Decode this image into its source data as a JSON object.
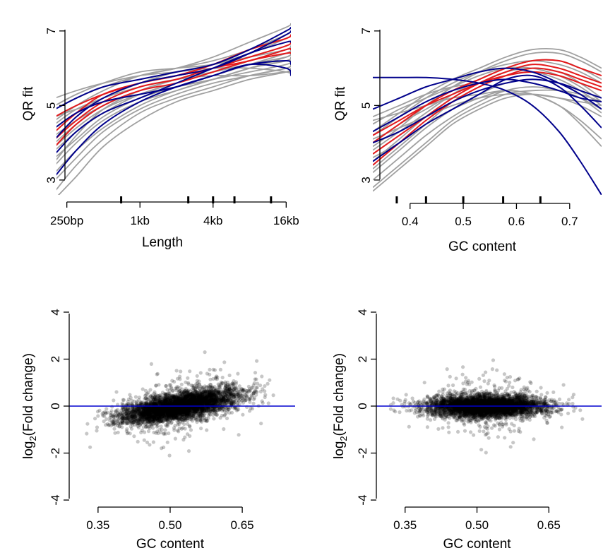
{
  "chart_data": [
    {
      "id": "length",
      "type": "line",
      "xlabel": "Length",
      "ylabel": "QR fit",
      "x_scale": "log2",
      "xlim": [
        200,
        17500
      ],
      "ylim": [
        2.6,
        7.3
      ],
      "xticks": [
        {
          "value": 250,
          "label": "250bp"
        },
        {
          "value": 1000,
          "label": "1kb"
        },
        {
          "value": 4000,
          "label": "4kb"
        },
        {
          "value": 16000,
          "label": "16kb"
        }
      ],
      "yticks": [
        {
          "value": 3,
          "label": "3"
        },
        {
          "value": 5,
          "label": "5"
        },
        {
          "value": 7,
          "label": "7"
        }
      ],
      "rug": [
        700,
        2500,
        4000,
        6000,
        12000
      ],
      "x": [
        200,
        300,
        500,
        1000,
        2000,
        4000,
        8000,
        16000,
        17500
      ],
      "series": [
        {
          "color": "#a0a0a0",
          "values": [
            4.6,
            5.0,
            5.4,
            5.8,
            6.0,
            6.2,
            6.5,
            6.9,
            7.0
          ]
        },
        {
          "color": "#a0a0a0",
          "values": [
            4.9,
            5.2,
            5.5,
            5.8,
            6.0,
            6.3,
            6.7,
            7.1,
            7.2
          ]
        },
        {
          "color": "#a0a0a0",
          "values": [
            5.2,
            5.4,
            5.6,
            5.8,
            5.9,
            6.0,
            6.0,
            5.9,
            5.8
          ]
        },
        {
          "color": "#a0a0a0",
          "values": [
            5.0,
            5.3,
            5.6,
            5.9,
            6.0,
            6.1,
            6.3,
            6.5,
            6.6
          ]
        },
        {
          "color": "#a0a0a0",
          "values": [
            4.4,
            4.8,
            5.2,
            5.6,
            5.9,
            6.1,
            6.4,
            6.8,
            6.9
          ]
        },
        {
          "color": "#a0a0a0",
          "values": [
            4.0,
            4.5,
            5.0,
            5.4,
            5.7,
            6.0,
            6.3,
            6.6,
            6.7
          ]
        },
        {
          "color": "#a0a0a0",
          "values": [
            3.8,
            4.3,
            4.8,
            5.3,
            5.6,
            5.9,
            6.2,
            6.5,
            6.6
          ]
        },
        {
          "color": "#a0a0a0",
          "values": [
            3.6,
            4.1,
            4.7,
            5.2,
            5.5,
            5.8,
            6.1,
            6.4,
            6.5
          ]
        },
        {
          "color": "#a0a0a0",
          "values": [
            3.4,
            4.0,
            4.6,
            5.1,
            5.4,
            5.7,
            6.0,
            6.3,
            6.4
          ]
        },
        {
          "color": "#a0a0a0",
          "values": [
            3.2,
            3.8,
            4.4,
            5.0,
            5.4,
            5.7,
            6.0,
            6.2,
            6.3
          ]
        },
        {
          "color": "#a0a0a0",
          "values": [
            3.0,
            3.6,
            4.3,
            4.9,
            5.3,
            5.6,
            5.8,
            6.0,
            6.1
          ]
        },
        {
          "color": "#a0a0a0",
          "values": [
            2.7,
            3.4,
            4.1,
            4.8,
            5.2,
            5.5,
            5.8,
            6.0,
            6.1
          ]
        },
        {
          "color": "#a0a0a0",
          "values": [
            2.5,
            3.1,
            3.9,
            4.6,
            5.1,
            5.4,
            5.7,
            5.9,
            6.0
          ]
        },
        {
          "color": "#a0a0a0",
          "values": [
            4.2,
            4.6,
            5.0,
            5.4,
            5.7,
            5.9,
            6.1,
            6.2,
            6.2
          ]
        },
        {
          "color": "#a0a0a0",
          "values": [
            4.5,
            4.9,
            5.2,
            5.5,
            5.7,
            5.8,
            5.8,
            5.9,
            5.9
          ]
        },
        {
          "color": "#a0a0a0",
          "values": [
            3.9,
            4.4,
            4.9,
            5.3,
            5.5,
            5.7,
            5.9,
            6.1,
            6.2
          ]
        },
        {
          "color": "#a0a0a0",
          "values": [
            4.7,
            4.9,
            5.1,
            5.3,
            5.5,
            5.8,
            6.1,
            6.3,
            6.4
          ]
        },
        {
          "color": "#a0a0a0",
          "values": [
            3.5,
            4.2,
            4.9,
            5.4,
            5.7,
            5.9,
            6.2,
            6.5,
            6.6
          ]
        },
        {
          "color": "#e31a1c",
          "values": [
            4.7,
            5.0,
            5.3,
            5.6,
            5.8,
            6.1,
            6.5,
            6.8,
            6.9
          ]
        },
        {
          "color": "#e31a1c",
          "values": [
            4.3,
            4.8,
            5.3,
            5.6,
            5.8,
            6.0,
            6.3,
            6.6,
            6.7
          ]
        },
        {
          "color": "#e31a1c",
          "values": [
            4.1,
            4.6,
            5.1,
            5.5,
            5.7,
            6.0,
            6.2,
            6.5,
            6.5
          ]
        },
        {
          "color": "#e31a1c",
          "values": [
            3.9,
            4.5,
            5.0,
            5.4,
            5.6,
            5.9,
            6.2,
            6.4,
            6.4
          ]
        },
        {
          "color": "#00008b",
          "values": [
            4.9,
            5.2,
            5.5,
            5.7,
            5.9,
            6.1,
            6.5,
            7.0,
            7.1
          ]
        },
        {
          "color": "#00008b",
          "values": [
            4.1,
            4.7,
            5.2,
            5.6,
            5.8,
            6.0,
            6.4,
            6.9,
            7.0
          ]
        },
        {
          "color": "#00008b",
          "values": [
            3.7,
            4.3,
            4.8,
            5.2,
            5.6,
            6.0,
            6.4,
            6.7,
            6.7
          ]
        },
        {
          "color": "#00008b",
          "values": [
            3.1,
            3.8,
            4.5,
            5.1,
            5.5,
            5.8,
            6.1,
            6.2,
            6.1
          ]
        },
        {
          "color": "#00008b",
          "values": [
            4.4,
            4.8,
            5.1,
            5.3,
            5.5,
            5.8,
            6.1,
            6.0,
            5.8
          ]
        }
      ]
    },
    {
      "id": "gc",
      "type": "line",
      "xlabel": "GC content",
      "ylabel": "QR fit",
      "xlim": [
        0.33,
        0.76
      ],
      "ylim": [
        2.6,
        7.3
      ],
      "xticks": [
        {
          "value": 0.4,
          "label": "0.4"
        },
        {
          "value": 0.5,
          "label": "0.5"
        },
        {
          "value": 0.6,
          "label": "0.6"
        },
        {
          "value": 0.7,
          "label": "0.7"
        }
      ],
      "yticks": [
        {
          "value": 3,
          "label": "3"
        },
        {
          "value": 5,
          "label": "5"
        },
        {
          "value": 7,
          "label": "7"
        }
      ],
      "rug": [
        0.375,
        0.43,
        0.5,
        0.575,
        0.645
      ],
      "x": [
        0.33,
        0.38,
        0.43,
        0.48,
        0.53,
        0.58,
        0.63,
        0.68,
        0.72,
        0.76
      ],
      "series": [
        {
          "color": "#a0a0a0",
          "values": [
            4.2,
            4.7,
            5.2,
            5.6,
            5.9,
            6.1,
            6.2,
            6.1,
            5.9,
            5.6
          ]
        },
        {
          "color": "#a0a0a0",
          "values": [
            3.8,
            4.3,
            4.8,
            5.3,
            5.7,
            6.0,
            6.2,
            6.2,
            6.0,
            5.7
          ]
        },
        {
          "color": "#a0a0a0",
          "values": [
            4.5,
            4.9,
            5.2,
            5.5,
            5.8,
            6.0,
            6.0,
            5.8,
            5.5,
            5.1
          ]
        },
        {
          "color": "#a0a0a0",
          "values": [
            3.5,
            4.1,
            4.7,
            5.2,
            5.6,
            5.9,
            6.0,
            5.9,
            5.6,
            5.2
          ]
        },
        {
          "color": "#a0a0a0",
          "values": [
            4.0,
            4.5,
            4.9,
            5.3,
            5.6,
            5.8,
            5.9,
            5.8,
            5.6,
            5.4
          ]
        },
        {
          "color": "#a0a0a0",
          "values": [
            3.2,
            3.8,
            4.4,
            4.9,
            5.3,
            5.6,
            5.7,
            5.6,
            5.3,
            4.9
          ]
        },
        {
          "color": "#a0a0a0",
          "values": [
            3.0,
            3.6,
            4.2,
            4.7,
            5.1,
            5.4,
            5.5,
            5.4,
            5.2,
            4.8
          ]
        },
        {
          "color": "#a0a0a0",
          "values": [
            2.8,
            3.4,
            4.0,
            4.6,
            5.0,
            5.3,
            5.4,
            5.4,
            5.3,
            5.1
          ]
        },
        {
          "color": "#a0a0a0",
          "values": [
            4.6,
            4.8,
            5.0,
            5.2,
            5.3,
            5.4,
            5.3,
            5.0,
            4.6,
            4.1
          ]
        },
        {
          "color": "#a0a0a0",
          "values": [
            3.6,
            4.0,
            4.5,
            4.9,
            5.2,
            5.4,
            5.3,
            5.0,
            4.5,
            3.9
          ]
        },
        {
          "color": "#a0a0a0",
          "values": [
            4.1,
            4.4,
            4.7,
            5.0,
            5.2,
            5.3,
            5.3,
            5.2,
            5.1,
            5.0
          ]
        },
        {
          "color": "#a0a0a0",
          "values": [
            3.3,
            3.9,
            4.5,
            5.1,
            5.5,
            5.8,
            5.9,
            5.7,
            5.4,
            5.0
          ]
        },
        {
          "color": "#a0a0a0",
          "values": [
            2.7,
            3.3,
            3.9,
            4.5,
            4.9,
            5.2,
            5.3,
            5.2,
            5.0,
            4.7
          ]
        },
        {
          "color": "#a0a0a0",
          "values": [
            4.3,
            4.8,
            5.3,
            5.7,
            6.0,
            6.3,
            6.5,
            6.5,
            6.3,
            6.0
          ]
        },
        {
          "color": "#a0a0a0",
          "values": [
            3.9,
            4.4,
            5.0,
            5.5,
            5.9,
            6.2,
            6.4,
            6.4,
            6.2,
            5.9
          ]
        },
        {
          "color": "#a0a0a0",
          "values": [
            4.7,
            5.0,
            5.3,
            5.5,
            5.6,
            5.7,
            5.6,
            5.4,
            5.2,
            4.9
          ]
        },
        {
          "color": "#e31a1c",
          "values": [
            4.0,
            4.5,
            5.0,
            5.4,
            5.7,
            6.0,
            6.2,
            6.2,
            6.0,
            5.8
          ]
        },
        {
          "color": "#e31a1c",
          "values": [
            3.7,
            4.2,
            4.7,
            5.2,
            5.6,
            5.9,
            6.1,
            6.0,
            5.8,
            5.6
          ]
        },
        {
          "color": "#e31a1c",
          "values": [
            3.4,
            4.0,
            4.6,
            5.1,
            5.5,
            5.8,
            6.0,
            5.9,
            5.7,
            5.5
          ]
        },
        {
          "color": "#e31a1c",
          "values": [
            4.2,
            4.6,
            5.0,
            5.3,
            5.6,
            5.8,
            5.9,
            5.8,
            5.6,
            5.4
          ]
        },
        {
          "color": "#00008b",
          "values": [
            5.75,
            5.75,
            5.75,
            5.7,
            5.6,
            5.4,
            5.0,
            4.3,
            3.5,
            2.6
          ]
        },
        {
          "color": "#00008b",
          "values": [
            4.9,
            5.2,
            5.5,
            5.7,
            5.9,
            6.0,
            5.9,
            5.6,
            5.3,
            4.9
          ]
        },
        {
          "color": "#00008b",
          "values": [
            4.3,
            4.7,
            5.1,
            5.4,
            5.6,
            5.7,
            5.6,
            5.4,
            5.2,
            5.1
          ]
        },
        {
          "color": "#00008b",
          "values": [
            3.5,
            4.0,
            4.5,
            4.9,
            5.3,
            5.7,
            5.8,
            5.5,
            5.0,
            4.4
          ]
        },
        {
          "color": "#00008b",
          "values": [
            4.0,
            4.3,
            4.7,
            5.1,
            5.4,
            5.6,
            5.7,
            5.6,
            5.4,
            5.2
          ]
        }
      ]
    },
    {
      "id": "fc-before",
      "type": "scatter",
      "xlabel": "GC content",
      "ylabel_base": "log",
      "ylabel_sub": "2",
      "ylabel_rest": "(Fold change)",
      "xlim": [
        0.29,
        0.76
      ],
      "ylim": [
        -4.3,
        4.3
      ],
      "xticks": [
        {
          "value": 0.35,
          "label": "0.35"
        },
        {
          "value": 0.5,
          "label": "0.5",
          "text": "0.50"
        },
        {
          "value": 0.65,
          "label": "0.65"
        }
      ],
      "yticks": [
        {
          "value": -4,
          "label": "-4"
        },
        {
          "value": -2,
          "label": "-2"
        },
        {
          "value": 0,
          "label": "0"
        },
        {
          "value": 2,
          "label": "2"
        },
        {
          "value": 4,
          "label": "4"
        }
      ],
      "hline": {
        "y": 0,
        "color": "#0000cd"
      },
      "cloud": {
        "x_center": 0.52,
        "x_sd": 0.06,
        "x_min": 0.32,
        "x_max": 0.72,
        "trend_slope": 3.6,
        "y_sd": 0.28,
        "y_tail_sd": 0.65,
        "n": 4500
      }
    },
    {
      "id": "fc-after",
      "type": "scatter",
      "xlabel": "GC content",
      "ylabel_base": "log",
      "ylabel_sub": "2",
      "ylabel_rest": "(Fold change)",
      "xlim": [
        0.29,
        0.76
      ],
      "ylim": [
        -4.3,
        4.3
      ],
      "xticks": [
        {
          "value": 0.35,
          "label": "0.35"
        },
        {
          "value": 0.5,
          "label": "0.5",
          "text": "0.50"
        },
        {
          "value": 0.65,
          "label": "0.65"
        }
      ],
      "yticks": [
        {
          "value": -4,
          "label": "-4"
        },
        {
          "value": -2,
          "label": "-2"
        },
        {
          "value": 0,
          "label": "0"
        },
        {
          "value": 2,
          "label": "2"
        },
        {
          "value": 4,
          "label": "4"
        }
      ],
      "hline": {
        "y": 0,
        "color": "#0000cd"
      },
      "cloud": {
        "x_center": 0.52,
        "x_sd": 0.06,
        "x_min": 0.32,
        "x_max": 0.72,
        "trend_slope": 0.0,
        "y_sd": 0.22,
        "y_tail_sd": 0.6,
        "n": 4500
      }
    }
  ]
}
